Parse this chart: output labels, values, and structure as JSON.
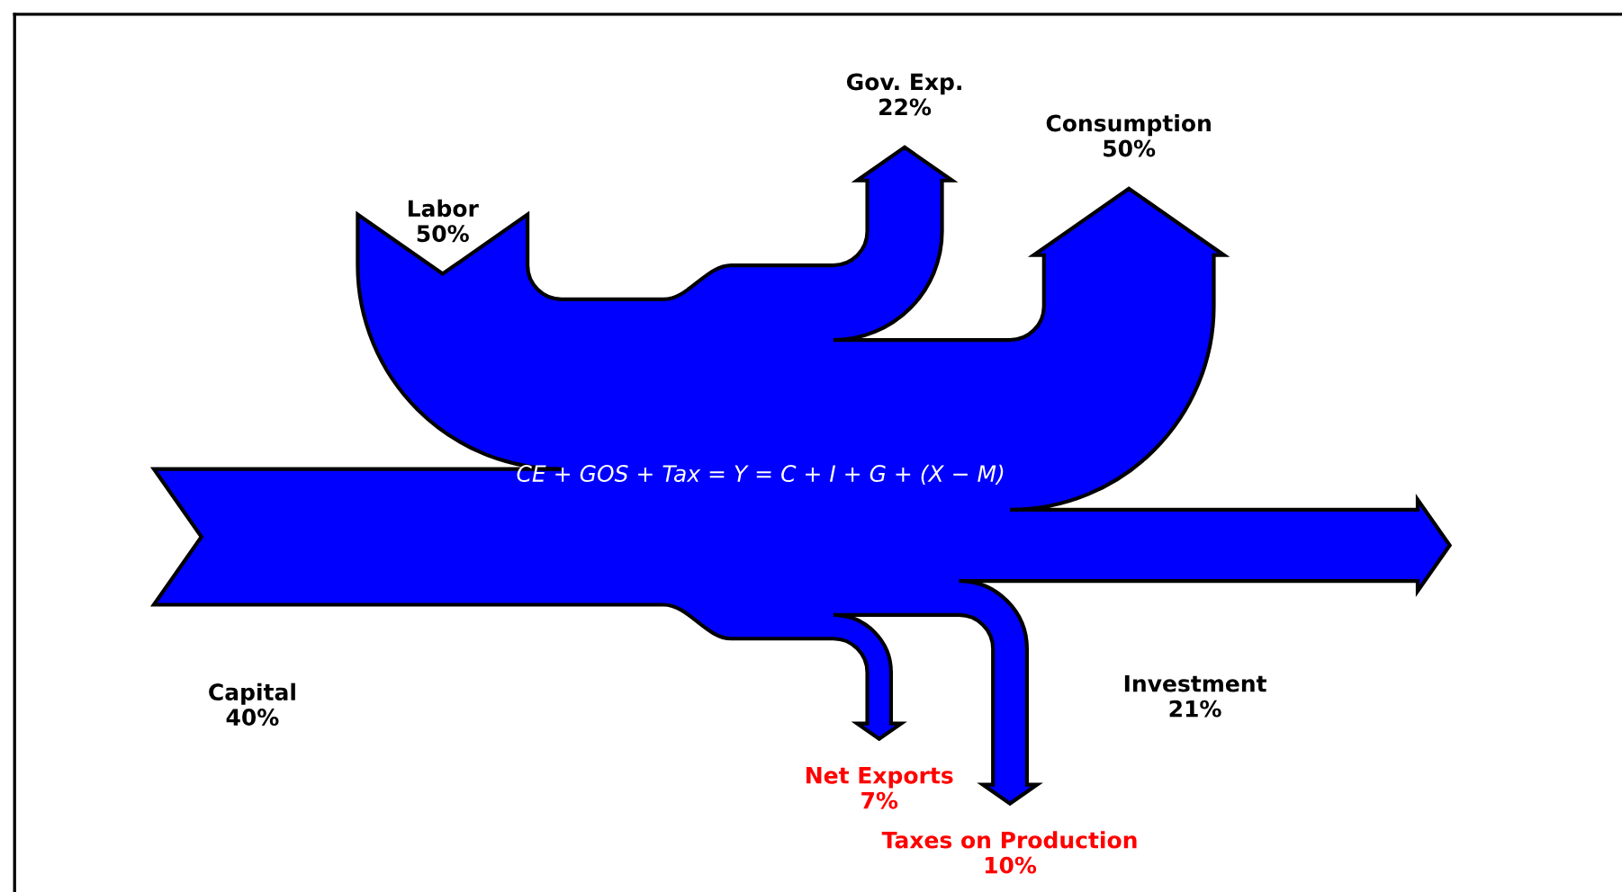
{
  "chart_data": {
    "type": "other",
    "categories": [
      "Labor",
      "Capital",
      "Gov. Exp.",
      "Consumption",
      "Investment",
      "Taxes on Production",
      "Net Exports"
    ],
    "series": [
      {
        "values": [
          50,
          40,
          null,
          null,
          null,
          null,
          null
        ],
        "value_labels": [
          "50%",
          "40%",
          null,
          null,
          null,
          null,
          null
        ]
      },
      {
        "values": [
          null,
          null,
          22,
          50,
          21,
          10,
          7
        ],
        "value_labels": [
          null,
          null,
          "22%",
          "50%",
          "21%",
          "10%",
          "7%"
        ]
      }
    ],
    "color": "#0000ff",
    "colors": [
      "#000000",
      "#000000",
      "#000000",
      "#000000",
      "#000000",
      "#ff0000",
      "#ff0000"
    ],
    "annotations": [
      "CE + GOS + Tax = Y = C + I + G + (X − M)"
    ]
  }
}
